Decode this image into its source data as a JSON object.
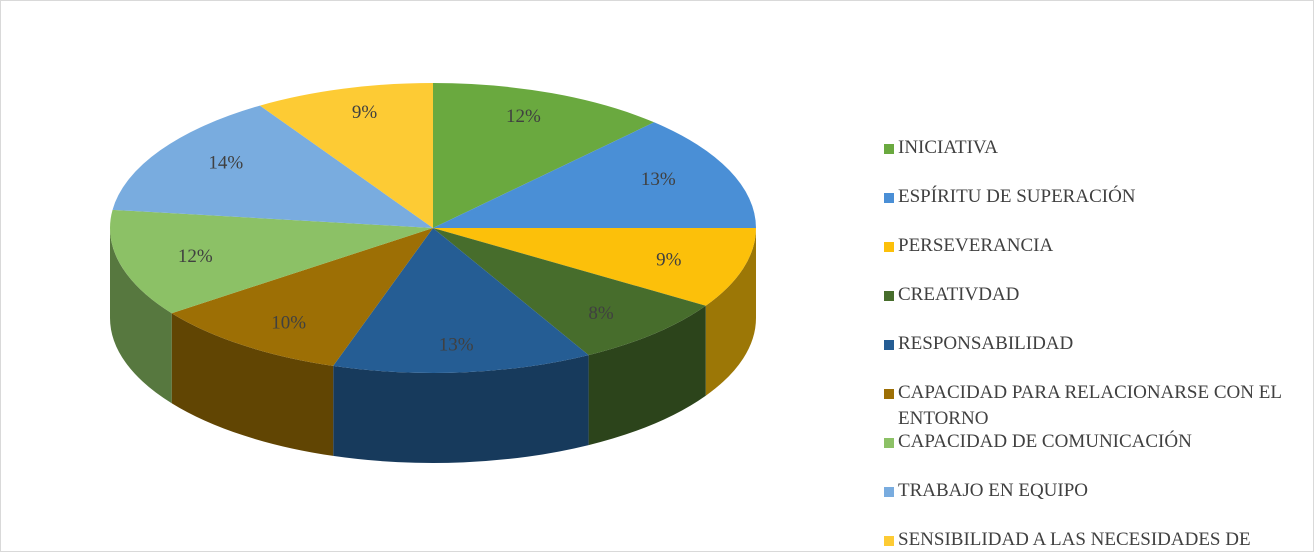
{
  "chart_data": {
    "type": "pie",
    "categories": [
      "INICIATIVA",
      "ESPÍRITU DE SUPERACIÓN",
      "PERSEVERANCIA",
      "CREATIVDAD",
      "RESPONSABILIDAD",
      "CAPACIDAD PARA RELACIONARSE CON EL ENTORNO",
      "CAPACIDAD DE COMUNICACIÓN",
      "TRABAJO EN EQUIPO",
      "SENSIBILIDAD A LAS NECESIDADES DE OTROS"
    ],
    "values": [
      12,
      13,
      9,
      8,
      13,
      10,
      12,
      14,
      9
    ],
    "value_labels": [
      "12%",
      "13%",
      "9%",
      "8%",
      "13%",
      "10%",
      "12%",
      "14%",
      "9%"
    ],
    "colors": [
      "#6aa93f",
      "#4a8fd6",
      "#fcc00a",
      "#476d2c",
      "#255d94",
      "#9d6f05",
      "#8cc166",
      "#79acdf",
      "#fdcb34"
    ],
    "legend": "right"
  }
}
